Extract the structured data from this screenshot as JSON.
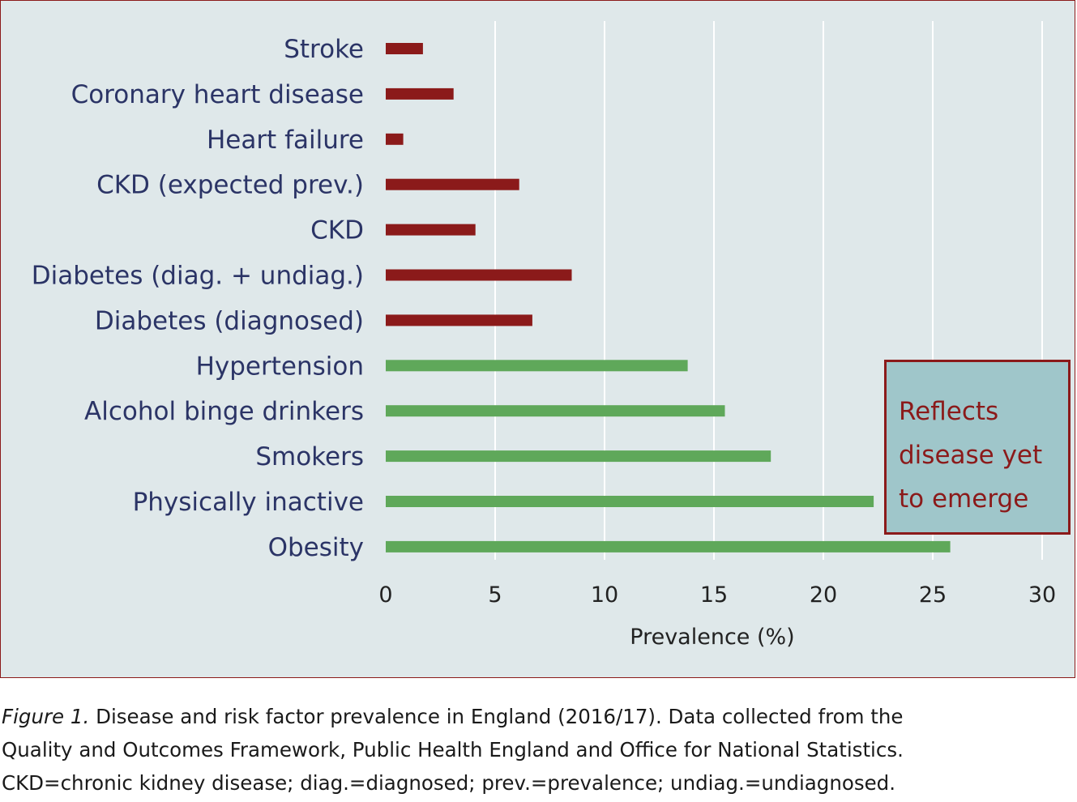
{
  "chart_data": {
    "type": "bar",
    "orientation": "horizontal",
    "categories": [
      "Stroke",
      "Coronary heart disease",
      "Heart failure",
      "CKD (expected prev.)",
      "CKD",
      "Diabetes (diag. + undiag.)",
      "Diabetes (diagnosed)",
      "Hypertension",
      "Alcohol binge drinkers",
      "Smokers",
      "Physically inactive",
      "Obesity"
    ],
    "values": [
      1.7,
      3.1,
      0.8,
      6.1,
      4.1,
      8.5,
      6.7,
      13.8,
      15.5,
      17.6,
      22.3,
      25.8
    ],
    "bar_colors": [
      "#8b1a1a",
      "#8b1a1a",
      "#8b1a1a",
      "#8b1a1a",
      "#8b1a1a",
      "#8b1a1a",
      "#8b1a1a",
      "#5fa85a",
      "#5fa85a",
      "#5fa85a",
      "#5fa85a",
      "#5fa85a"
    ],
    "xlabel": "Prevalence (%)",
    "xlim": [
      0,
      30
    ],
    "xticks": [
      0,
      5,
      10,
      15,
      20,
      25,
      30
    ],
    "xtick_labels": [
      "0",
      "5",
      "10",
      "15",
      "20",
      "25",
      "30"
    ],
    "grid": "vertical",
    "annotation": {
      "lines": [
        "Reflects",
        "disease yet",
        "to emerge"
      ],
      "placement": "right, beside the green risk-factor bars"
    }
  },
  "caption": {
    "figure_label": "Figure 1.",
    "line1": " Disease and risk factor prevalence in England (2016/17). Data collected from the",
    "line2": "Quality and Outcomes Framework, Public Health England and Office for National Statistics.",
    "line3": "CKD=chronic kidney disease; diag.=diagnosed; prev.=prevalence; undiag.=undiagnosed."
  },
  "colors": {
    "panel_background": "#dfe8ea",
    "panel_border": "#8b1a1a",
    "disease_bar": "#8b1a1a",
    "risk_factor_bar": "#5fa85a",
    "category_text": "#2b3466",
    "callout_background": "#9fc6ca",
    "callout_text": "#8b1a1a",
    "gridline": "#ffffff"
  }
}
